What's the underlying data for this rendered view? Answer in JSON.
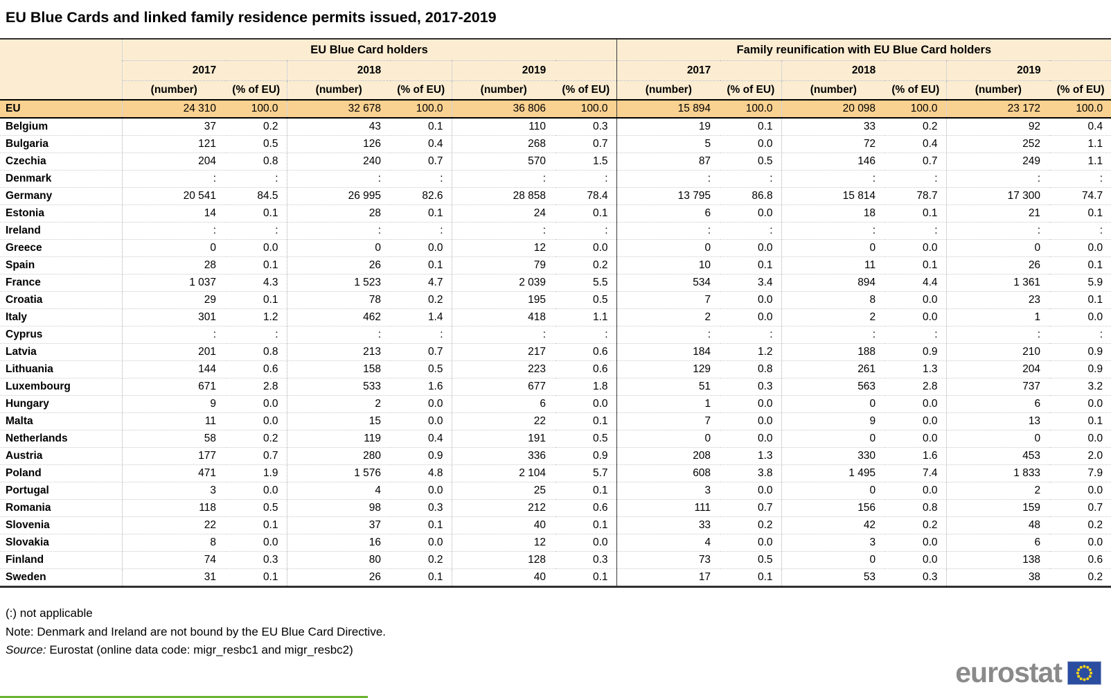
{
  "title": "EU Blue Cards and linked family residence permits issued, 2017-2019",
  "chart_data": {
    "type": "table",
    "column_groups": [
      "EU Blue Card holders",
      "Family reunification with EU Blue Card holders"
    ],
    "years": [
      "2017",
      "2018",
      "2019"
    ],
    "measures": [
      "(number)",
      "(% of EU)"
    ],
    "eu_row": {
      "label": "EU",
      "values": [
        "24 310",
        "100.0",
        "32 678",
        "100.0",
        "36 806",
        "100.0",
        "15 894",
        "100.0",
        "20 098",
        "100.0",
        "23 172",
        "100.0"
      ]
    },
    "rows": [
      {
        "label": "Belgium",
        "values": [
          "37",
          "0.2",
          "43",
          "0.1",
          "110",
          "0.3",
          "19",
          "0.1",
          "33",
          "0.2",
          "92",
          "0.4"
        ]
      },
      {
        "label": "Bulgaria",
        "values": [
          "121",
          "0.5",
          "126",
          "0.4",
          "268",
          "0.7",
          "5",
          "0.0",
          "72",
          "0.4",
          "252",
          "1.1"
        ]
      },
      {
        "label": "Czechia",
        "values": [
          "204",
          "0.8",
          "240",
          "0.7",
          "570",
          "1.5",
          "87",
          "0.5",
          "146",
          "0.7",
          "249",
          "1.1"
        ]
      },
      {
        "label": "Denmark",
        "values": [
          ":",
          ":",
          ":",
          ":",
          ":",
          ":",
          ":",
          ":",
          ":",
          ":",
          ":",
          ":"
        ]
      },
      {
        "label": "Germany",
        "values": [
          "20 541",
          "84.5",
          "26 995",
          "82.6",
          "28 858",
          "78.4",
          "13 795",
          "86.8",
          "15 814",
          "78.7",
          "17 300",
          "74.7"
        ]
      },
      {
        "label": "Estonia",
        "values": [
          "14",
          "0.1",
          "28",
          "0.1",
          "24",
          "0.1",
          "6",
          "0.0",
          "18",
          "0.1",
          "21",
          "0.1"
        ]
      },
      {
        "label": "Ireland",
        "values": [
          ":",
          ":",
          ":",
          ":",
          ":",
          ":",
          ":",
          ":",
          ":",
          ":",
          ":",
          ":"
        ]
      },
      {
        "label": "Greece",
        "values": [
          "0",
          "0.0",
          "0",
          "0.0",
          "12",
          "0.0",
          "0",
          "0.0",
          "0",
          "0.0",
          "0",
          "0.0"
        ]
      },
      {
        "label": "Spain",
        "values": [
          "28",
          "0.1",
          "26",
          "0.1",
          "79",
          "0.2",
          "10",
          "0.1",
          "11",
          "0.1",
          "26",
          "0.1"
        ]
      },
      {
        "label": "France",
        "values": [
          "1 037",
          "4.3",
          "1 523",
          "4.7",
          "2 039",
          "5.5",
          "534",
          "3.4",
          "894",
          "4.4",
          "1 361",
          "5.9"
        ]
      },
      {
        "label": "Croatia",
        "values": [
          "29",
          "0.1",
          "78",
          "0.2",
          "195",
          "0.5",
          "7",
          "0.0",
          "8",
          "0.0",
          "23",
          "0.1"
        ]
      },
      {
        "label": "Italy",
        "values": [
          "301",
          "1.2",
          "462",
          "1.4",
          "418",
          "1.1",
          "2",
          "0.0",
          "2",
          "0.0",
          "1",
          "0.0"
        ]
      },
      {
        "label": "Cyprus",
        "values": [
          ":",
          ":",
          ":",
          ":",
          ":",
          ":",
          ":",
          ":",
          ":",
          ":",
          ":",
          ":"
        ]
      },
      {
        "label": "Latvia",
        "values": [
          "201",
          "0.8",
          "213",
          "0.7",
          "217",
          "0.6",
          "184",
          "1.2",
          "188",
          "0.9",
          "210",
          "0.9"
        ]
      },
      {
        "label": "Lithuania",
        "values": [
          "144",
          "0.6",
          "158",
          "0.5",
          "223",
          "0.6",
          "129",
          "0.8",
          "261",
          "1.3",
          "204",
          "0.9"
        ]
      },
      {
        "label": "Luxembourg",
        "values": [
          "671",
          "2.8",
          "533",
          "1.6",
          "677",
          "1.8",
          "51",
          "0.3",
          "563",
          "2.8",
          "737",
          "3.2"
        ]
      },
      {
        "label": "Hungary",
        "values": [
          "9",
          "0.0",
          "2",
          "0.0",
          "6",
          "0.0",
          "1",
          "0.0",
          "0",
          "0.0",
          "6",
          "0.0"
        ]
      },
      {
        "label": "Malta",
        "values": [
          "11",
          "0.0",
          "15",
          "0.0",
          "22",
          "0.1",
          "7",
          "0.0",
          "9",
          "0.0",
          "13",
          "0.1"
        ]
      },
      {
        "label": "Netherlands",
        "values": [
          "58",
          "0.2",
          "119",
          "0.4",
          "191",
          "0.5",
          "0",
          "0.0",
          "0",
          "0.0",
          "0",
          "0.0"
        ]
      },
      {
        "label": "Austria",
        "values": [
          "177",
          "0.7",
          "280",
          "0.9",
          "336",
          "0.9",
          "208",
          "1.3",
          "330",
          "1.6",
          "453",
          "2.0"
        ]
      },
      {
        "label": "Poland",
        "values": [
          "471",
          "1.9",
          "1 576",
          "4.8",
          "2 104",
          "5.7",
          "608",
          "3.8",
          "1 495",
          "7.4",
          "1 833",
          "7.9"
        ]
      },
      {
        "label": "Portugal",
        "values": [
          "3",
          "0.0",
          "4",
          "0.0",
          "25",
          "0.1",
          "3",
          "0.0",
          "0",
          "0.0",
          "2",
          "0.0"
        ]
      },
      {
        "label": "Romania",
        "values": [
          "118",
          "0.5",
          "98",
          "0.3",
          "212",
          "0.6",
          "111",
          "0.7",
          "156",
          "0.8",
          "159",
          "0.7"
        ]
      },
      {
        "label": "Slovenia",
        "values": [
          "22",
          "0.1",
          "37",
          "0.1",
          "40",
          "0.1",
          "33",
          "0.2",
          "42",
          "0.2",
          "48",
          "0.2"
        ]
      },
      {
        "label": "Slovakia",
        "values": [
          "8",
          "0.0",
          "16",
          "0.0",
          "12",
          "0.0",
          "4",
          "0.0",
          "3",
          "0.0",
          "6",
          "0.0"
        ]
      },
      {
        "label": "Finland",
        "values": [
          "74",
          "0.3",
          "80",
          "0.2",
          "128",
          "0.3",
          "73",
          "0.5",
          "0",
          "0.0",
          "138",
          "0.6"
        ]
      },
      {
        "label": "Sweden",
        "values": [
          "31",
          "0.1",
          "26",
          "0.1",
          "40",
          "0.1",
          "17",
          "0.1",
          "53",
          "0.3",
          "38",
          "0.2"
        ]
      }
    ]
  },
  "footnotes": {
    "not_applicable": "(:) not applicable",
    "note": "Note: Denmark and Ireland are not bound by the EU Blue Card Directive.",
    "source_prefix": "Source:",
    "source_text": " Eurostat (online data code: migr_resbc1 and migr_resbc2)"
  },
  "logo": {
    "text": "eurostat"
  },
  "colors": {
    "header_bg": "#FCEDD2",
    "eu_row_bg": "#F9D191",
    "accent_green": "#69B42E",
    "logo_gray": "#8A8A8A",
    "flag_blue": "#2A4DA0",
    "star_yellow": "#FFD617"
  }
}
